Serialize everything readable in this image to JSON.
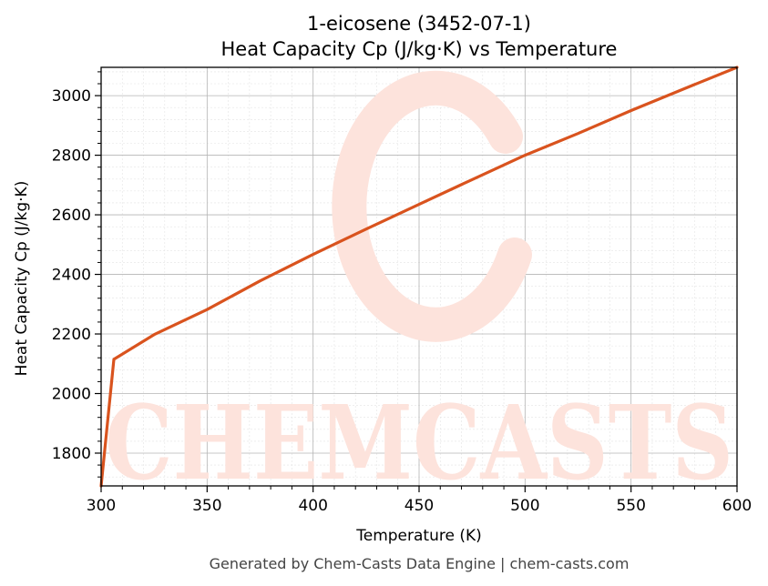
{
  "chart_data": {
    "type": "line",
    "title": "1-eicosene (3452-07-1)",
    "subtitle": "Heat Capacity Cp (J/kg·K) vs Temperature",
    "xlabel": "Temperature (K)",
    "ylabel": "Heat Capacity Cp (J/kg·K)",
    "xlim": [
      300,
      600
    ],
    "ylim": [
      1690,
      3095
    ],
    "xticks": [
      300,
      350,
      400,
      450,
      500,
      550,
      600
    ],
    "yticks": [
      1800,
      2000,
      2200,
      2400,
      2600,
      2800,
      3000
    ],
    "grid": true,
    "legend": "none",
    "series": [
      {
        "color": "#d9531e",
        "x": [
          300,
          306,
          325,
          350,
          375,
          400,
          425,
          450,
          475,
          500,
          525,
          550,
          575,
          600
        ],
        "y": [
          1690,
          2115,
          2198,
          2282,
          2378,
          2467,
          2552,
          2635,
          2718,
          2800,
          2873,
          2950,
          3023,
          3095
        ]
      }
    ]
  },
  "watermark": "CHEMCASTS",
  "footer": "Generated by Chem-Casts Data Engine | chem-casts.com"
}
